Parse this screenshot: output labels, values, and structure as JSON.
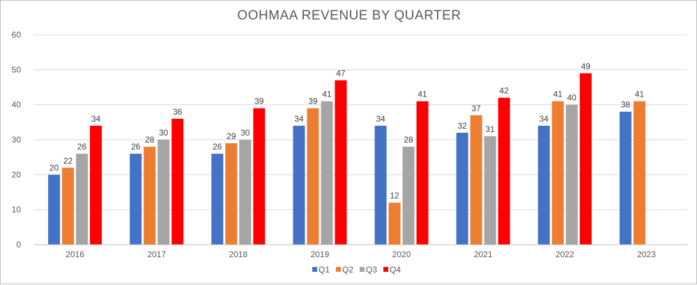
{
  "chart_data": {
    "type": "bar",
    "title": "OOHMAA REVENUE BY QUARTER",
    "xlabel": "",
    "ylabel": "",
    "ylim": [
      0,
      60
    ],
    "yticks": [
      0,
      10,
      20,
      30,
      40,
      50,
      60
    ],
    "grid": true,
    "legend": "bottom-center",
    "categories": [
      "2016",
      "2017",
      "2018",
      "2019",
      "2020",
      "2021",
      "2022",
      "2023"
    ],
    "series": [
      {
        "name": "Q1",
        "color": "#4472c4",
        "values": [
          20,
          26,
          26,
          34,
          34,
          32,
          34,
          38
        ]
      },
      {
        "name": "Q2",
        "color": "#ed7d31",
        "values": [
          22,
          28,
          29,
          39,
          12,
          37,
          41,
          41
        ]
      },
      {
        "name": "Q3",
        "color": "#a5a5a5",
        "values": [
          26,
          30,
          30,
          41,
          28,
          31,
          40,
          null
        ]
      },
      {
        "name": "Q4",
        "color": "#ff0000",
        "values": [
          34,
          36,
          39,
          47,
          41,
          42,
          49,
          null
        ]
      }
    ]
  }
}
